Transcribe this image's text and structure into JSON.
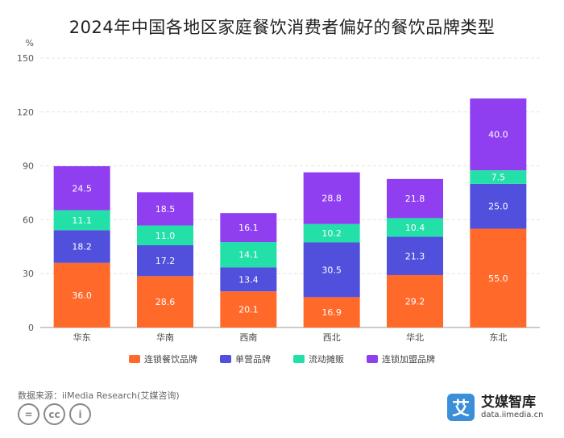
{
  "chart_data": {
    "type": "bar",
    "stacked": true,
    "title": "2024年中国各地区家庭餐饮消费者偏好的餐饮品牌类型",
    "ylabel": "%",
    "xlabel": "",
    "ylim": [
      0,
      150
    ],
    "yticks": [
      0,
      30,
      60,
      90,
      120,
      150
    ],
    "grid": true,
    "legend_position": "bottom",
    "categories": [
      "华东",
      "华南",
      "西南",
      "西北",
      "华北",
      "东北"
    ],
    "series": [
      {
        "name": "连锁餐饮品牌",
        "color": "#ff6a2b",
        "values": [
          36.0,
          28.6,
          20.1,
          16.9,
          29.2,
          55.0
        ]
      },
      {
        "name": "单营品牌",
        "color": "#5050dd",
        "values": [
          18.2,
          17.2,
          13.4,
          30.5,
          21.3,
          25.0
        ]
      },
      {
        "name": "流动摊贩",
        "color": "#22e0a8",
        "values": [
          11.1,
          11.0,
          14.1,
          10.2,
          10.4,
          7.5
        ]
      },
      {
        "name": "连锁加盟品牌",
        "color": "#8f3ff0",
        "values": [
          24.5,
          18.5,
          16.1,
          28.8,
          21.8,
          40.0
        ]
      }
    ]
  },
  "source_text": "数据来源：iiMedia Research(艾媒咨询)",
  "license_icons": [
    "=",
    "cc",
    "i"
  ],
  "brand": {
    "logo_char": "艾",
    "name": "艾媒智库",
    "url": "data.iimedia.cn"
  }
}
